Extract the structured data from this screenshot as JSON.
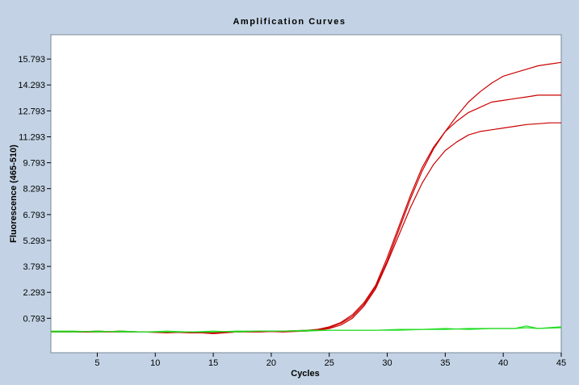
{
  "chart_data": {
    "type": "line",
    "title": "Amplification Curves",
    "xlabel": "Cycles",
    "ylabel": "Fluorescence (465-510)",
    "xlim": [
      1,
      45
    ],
    "ylim": [
      -1.2,
      17.2
    ],
    "x_ticks": [
      5,
      10,
      15,
      20,
      25,
      30,
      35,
      40,
      45
    ],
    "y_ticks": [
      0.793,
      2.293,
      3.793,
      5.293,
      6.793,
      8.293,
      9.793,
      11.293,
      12.793,
      14.293,
      15.793
    ],
    "y_tick_labels": [
      "0.793",
      "2.293",
      "3.793",
      "5.293",
      "6.793",
      "8.293",
      "9.793",
      "11.293",
      "12.793",
      "14.293",
      "15.793"
    ],
    "grid": false,
    "legend": "none",
    "colors": {
      "positive": "#cc0000",
      "negative": "#22dd22",
      "background": "#c3d3e5",
      "plot_area": "#ffffff"
    },
    "series": [
      {
        "color": "#cc0000",
        "x": [
          1,
          3,
          5,
          7,
          9,
          11,
          13,
          15,
          17,
          19,
          21,
          23,
          24,
          25,
          26,
          27,
          28,
          29,
          30,
          31,
          32,
          33,
          34,
          35,
          36,
          37,
          38,
          39,
          40,
          41,
          42,
          43,
          44,
          45
        ],
        "y": [
          0.0,
          0.0,
          0.0,
          0.0,
          0.0,
          0.0,
          -0.05,
          -0.05,
          0.0,
          0.05,
          0.05,
          0.1,
          0.15,
          0.25,
          0.5,
          0.9,
          1.6,
          2.6,
          4.1,
          5.9,
          7.7,
          9.3,
          10.6,
          11.6,
          12.5,
          13.3,
          13.9,
          14.4,
          14.8,
          15.0,
          15.2,
          15.4,
          15.5,
          15.6
        ]
      },
      {
        "color": "#cc0000",
        "x": [
          1,
          3,
          5,
          7,
          9,
          11,
          13,
          15,
          17,
          19,
          21,
          23,
          24,
          25,
          26,
          27,
          28,
          29,
          30,
          31,
          32,
          33,
          34,
          35,
          36,
          37,
          38,
          39,
          40,
          41,
          42,
          43,
          44,
          45
        ],
        "y": [
          0.0,
          0.0,
          0.05,
          0.0,
          0.0,
          -0.05,
          0.0,
          -0.1,
          0.0,
          0.05,
          0.0,
          0.05,
          0.15,
          0.3,
          0.55,
          1.0,
          1.7,
          2.7,
          4.3,
          6.1,
          7.9,
          9.5,
          10.7,
          11.6,
          12.2,
          12.7,
          13.0,
          13.3,
          13.4,
          13.5,
          13.6,
          13.7,
          13.7,
          13.7
        ]
      },
      {
        "color": "#cc0000",
        "x": [
          1,
          3,
          5,
          7,
          9,
          11,
          13,
          15,
          17,
          19,
          21,
          23,
          24,
          25,
          26,
          27,
          28,
          29,
          30,
          31,
          32,
          33,
          34,
          35,
          36,
          37,
          38,
          39,
          40,
          41,
          42,
          43,
          44,
          45
        ],
        "y": [
          0.0,
          0.0,
          0.0,
          0.05,
          0.0,
          0.0,
          0.0,
          -0.05,
          0.0,
          0.0,
          0.05,
          0.05,
          0.1,
          0.2,
          0.4,
          0.8,
          1.5,
          2.5,
          4.0,
          5.6,
          7.2,
          8.6,
          9.7,
          10.5,
          11.0,
          11.4,
          11.6,
          11.7,
          11.8,
          11.9,
          12.0,
          12.05,
          12.1,
          12.1
        ]
      },
      {
        "color": "#22dd22",
        "x": [
          1,
          3,
          5,
          7,
          9,
          11,
          13,
          15,
          17,
          19,
          21,
          23,
          25,
          27,
          29,
          31,
          33,
          35,
          37,
          39,
          41,
          42,
          43,
          45
        ],
        "y": [
          0.0,
          0.0,
          0.05,
          0.0,
          0.0,
          0.0,
          0.0,
          0.05,
          0.0,
          0.05,
          0.05,
          0.1,
          0.1,
          0.1,
          0.1,
          0.15,
          0.15,
          0.15,
          0.2,
          0.2,
          0.2,
          0.25,
          0.2,
          0.25
        ]
      },
      {
        "color": "#22dd22",
        "x": [
          1,
          3,
          5,
          7,
          9,
          11,
          13,
          15,
          17,
          19,
          21,
          23,
          25,
          27,
          29,
          31,
          33,
          35,
          37,
          39,
          41,
          42,
          43,
          45
        ],
        "y": [
          0.05,
          0.05,
          0.0,
          0.05,
          0.0,
          0.05,
          0.0,
          0.0,
          0.05,
          0.05,
          0.05,
          0.05,
          0.1,
          0.1,
          0.1,
          0.1,
          0.15,
          0.2,
          0.15,
          0.2,
          0.2,
          0.35,
          0.2,
          0.3
        ]
      }
    ]
  }
}
